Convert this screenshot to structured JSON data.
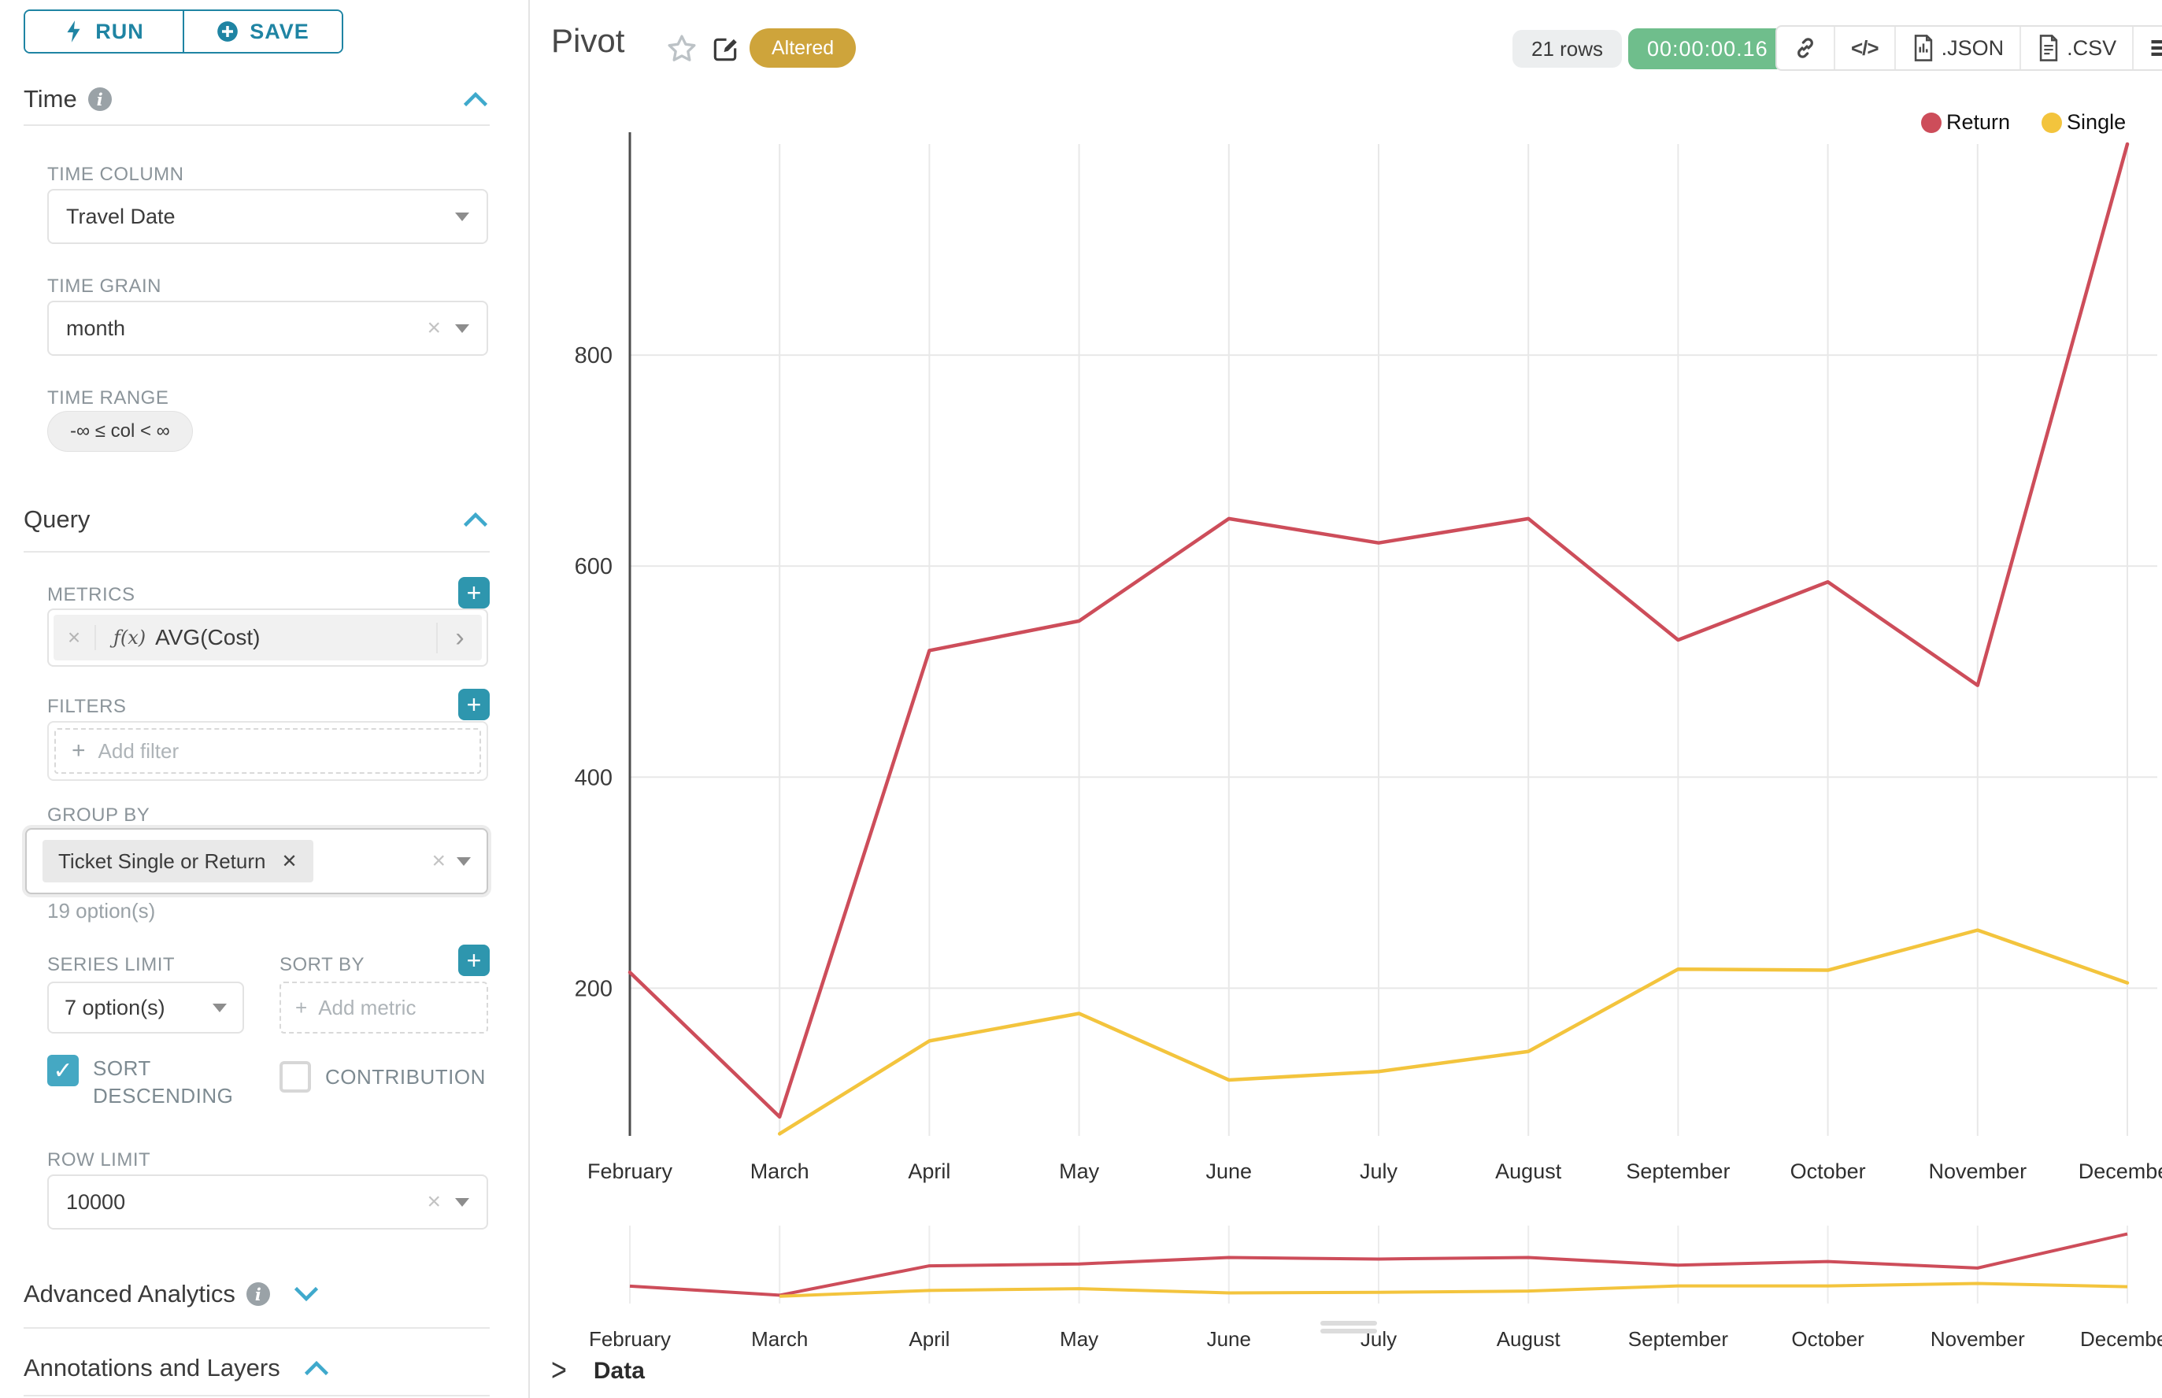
{
  "colors": {
    "accent": "#1f84a3",
    "chevron": "#3fa9cc",
    "plus_button": "#2e96ae",
    "checkbox": "#45a8c3",
    "altered_badge": "#cea43b",
    "timer_badge": "#6fbe8c",
    "return_series": "#cd4d5a",
    "single_series": "#f3c43d"
  },
  "sidebar": {
    "run_label": "RUN",
    "save_label": "SAVE",
    "time_title": "Time",
    "query_title": "Query",
    "advanced_title": "Advanced Analytics",
    "annotations_title": "Annotations and Layers",
    "time_column": {
      "label": "TIME COLUMN",
      "value": "Travel Date"
    },
    "time_grain": {
      "label": "TIME GRAIN",
      "value": "month"
    },
    "time_range": {
      "label": "TIME RANGE",
      "value": "-∞ ≤ col < ∞"
    },
    "metrics": {
      "label": "METRICS",
      "fn": "ƒ(x)",
      "value": "AVG(Cost)"
    },
    "filters": {
      "label": "FILTERS",
      "placeholder": "Add filter"
    },
    "group_by": {
      "label": "GROUP BY",
      "chip": "Ticket Single or Return",
      "hint": "19 option(s)"
    },
    "series_limit": {
      "label": "SERIES LIMIT",
      "value": "7 option(s)"
    },
    "sort_by": {
      "label": "SORT BY",
      "placeholder": "Add metric"
    },
    "sort_descending": {
      "label": "SORT DESCENDING",
      "checked": true
    },
    "contribution": {
      "label": "CONTRIBUTION",
      "checked": false
    },
    "row_limit": {
      "label": "ROW LIMIT",
      "value": "10000"
    }
  },
  "header": {
    "title": "Pivot",
    "altered_badge": "Altered",
    "row_count": "21 rows",
    "timer": "00:00:00.16",
    "export_json_label": ".JSON",
    "export_csv_label": ".CSV"
  },
  "data_panel": {
    "title": "Data"
  },
  "glyphs": {
    "clear": "×",
    "chip_remove": "✕",
    "metric_expand": "›",
    "code": "</>",
    "check": "✓",
    "plus": "+",
    "data_chevron": ">"
  },
  "chart_data": {
    "type": "line",
    "x": [
      "February",
      "March",
      "April",
      "May",
      "June",
      "July",
      "August",
      "September",
      "October",
      "November",
      "December"
    ],
    "series": [
      {
        "name": "Return",
        "color": "#cd4d5a",
        "values": [
          215,
          78,
          520,
          548,
          645,
          622,
          645,
          530,
          585,
          487,
          1000
        ]
      },
      {
        "name": "Single",
        "color": "#f3c43d",
        "values": [
          null,
          62,
          150,
          176,
          113,
          121,
          140,
          218,
          217,
          255,
          205
        ]
      }
    ],
    "yticks": [
      200,
      400,
      600,
      800
    ],
    "ylim": [
      60,
      1000
    ],
    "xlabel": "",
    "ylabel": "",
    "grid": true,
    "legend_position": "top-right",
    "has_preview_brush": true
  }
}
